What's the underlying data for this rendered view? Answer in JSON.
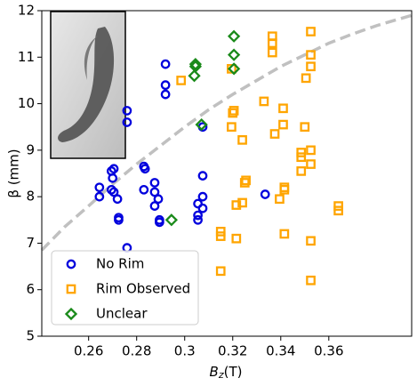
{
  "chart_data": {
    "type": "scatter",
    "x_label": {
      "symbol": "B",
      "subscript": "z",
      "unit": "(T)"
    },
    "y_label": "β (mm)",
    "xlim": [
      0.2405,
      0.3945
    ],
    "ylim": [
      5,
      12
    ],
    "xticks": [
      0.26,
      0.28,
      0.3,
      0.32,
      0.34,
      0.36
    ],
    "yticks": [
      5,
      6,
      7,
      8,
      9,
      10,
      11,
      12
    ],
    "legend": "lower left",
    "series": [
      {
        "name": "No Rim",
        "color": "#0000dd",
        "marker": "circle",
        "x": [
          0.2645,
          0.2645,
          0.2695,
          0.2705,
          0.27,
          0.2695,
          0.2705,
          0.272,
          0.2725,
          0.2725,
          0.276,
          0.276,
          0.276,
          0.283,
          0.2835,
          0.283,
          0.2875,
          0.2875,
          0.289,
          0.2875,
          0.2895,
          0.2895,
          0.292,
          0.292,
          0.292,
          0.3075,
          0.3075,
          0.3075,
          0.3055,
          0.3075,
          0.3055,
          0.3055,
          0.3335
        ],
        "values": [
          8.2,
          8.0,
          8.55,
          8.6,
          8.4,
          8.15,
          8.1,
          7.95,
          7.55,
          7.5,
          9.85,
          9.6,
          6.9,
          8.65,
          8.6,
          8.15,
          8.3,
          8.1,
          7.95,
          7.8,
          7.5,
          7.45,
          10.85,
          10.4,
          10.2,
          9.5,
          8.45,
          8.0,
          7.85,
          7.75,
          7.6,
          7.5,
          8.05
        ]
      },
      {
        "name": "Rim Observed",
        "color": "#ffa500",
        "marker": "square",
        "x": [
          0.2985,
          0.3195,
          0.3205,
          0.32,
          0.3195,
          0.324,
          0.325,
          0.3255,
          0.3215,
          0.324,
          0.3215,
          0.315,
          0.315,
          0.315,
          0.333,
          0.3365,
          0.3365,
          0.3365,
          0.3375,
          0.341,
          0.341,
          0.3415,
          0.3415,
          0.3395,
          0.3415,
          0.3485,
          0.3485,
          0.3485,
          0.35,
          0.3505,
          0.3525,
          0.3525,
          0.3525,
          0.3525,
          0.3525,
          0.3525,
          0.3525,
          0.364,
          0.364
        ],
        "values": [
          10.5,
          10.75,
          9.85,
          9.8,
          9.5,
          9.22,
          8.3,
          8.35,
          7.82,
          7.87,
          7.1,
          7.25,
          7.15,
          6.4,
          10.05,
          11.45,
          11.3,
          11.1,
          9.35,
          9.9,
          9.55,
          8.2,
          8.15,
          7.95,
          7.2,
          8.95,
          8.85,
          8.55,
          9.5,
          10.55,
          11.55,
          11.05,
          10.8,
          9.0,
          8.7,
          7.05,
          6.2,
          7.8,
          7.7
        ]
      },
      {
        "name": "Unclear",
        "color": "#1a8a1a",
        "marker": "diamond",
        "x": [
          0.2945,
          0.3045,
          0.3045,
          0.304,
          0.307,
          0.3205,
          0.3205,
          0.3205
        ],
        "values": [
          7.5,
          10.85,
          10.8,
          10.6,
          9.55,
          11.45,
          11.05,
          10.75
        ]
      }
    ],
    "curve": {
      "color": "#c0c0c0",
      "dashed": true,
      "x": [
        0.2405,
        0.25,
        0.26,
        0.27,
        0.28,
        0.29,
        0.3,
        0.31,
        0.32,
        0.33,
        0.34,
        0.35,
        0.36,
        0.37,
        0.38,
        0.3945
      ],
      "values": [
        6.85,
        7.35,
        7.8,
        8.27,
        8.7,
        9.1,
        9.5,
        9.87,
        10.2,
        10.5,
        10.8,
        11.05,
        11.3,
        11.5,
        11.68,
        11.9
      ]
    }
  }
}
